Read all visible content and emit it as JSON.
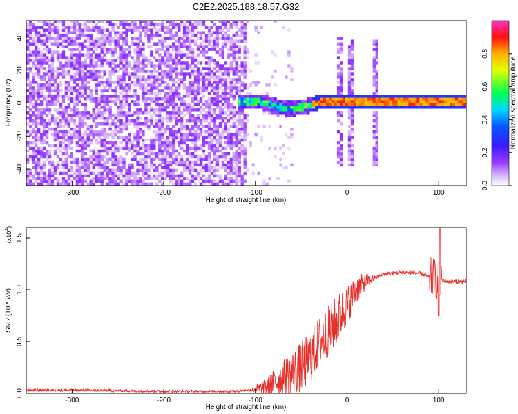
{
  "title": "C2E2.2025.188.18.57.G32",
  "colors": {
    "snr_line": "#e8302a",
    "axis": "#000000",
    "background": "#ffffff"
  },
  "chart_data": [
    {
      "type": "heatmap",
      "panel": "top",
      "xlabel": "Height of straight line (km)",
      "ylabel": "Frequency (Hz)",
      "xlim": [
        -350,
        130
      ],
      "ylim": [
        -50,
        50
      ],
      "xticks": [
        -300,
        -200,
        -100,
        0,
        100
      ],
      "yticks": [
        -40,
        -20,
        0,
        20,
        40
      ],
      "colorbar": {
        "label": "Normalized spectral amplitude",
        "range": [
          0,
          1
        ],
        "ticks": [
          "0.0",
          "0.2",
          "0.4",
          "0.6",
          "0.8"
        ],
        "colormap": "rainbow (white → violet → blue → cyan → green → yellow → red → magenta)"
      },
      "features": {
        "noise_region_x": [
          -350,
          -110
        ],
        "noise_amplitude": 0.1,
        "signal_line_x": [
          -120,
          130
        ],
        "signal_center_freq": 0,
        "signal_amplitude_at_top": 0.9,
        "vertical_bursts_x": [
          -10,
          2,
          30
        ]
      }
    },
    {
      "type": "line",
      "panel": "bottom",
      "xlabel": "Height of straight line (km)",
      "ylabel": "SNR (10 * v/v)",
      "y_multiplier": "(x10",
      "y_multiplier_exp": "4",
      "xlim": [
        -350,
        130
      ],
      "ylim": [
        0,
        1.6
      ],
      "xticks": [
        -300,
        -200,
        -100,
        0,
        100
      ],
      "yticks": [
        0.0,
        0.5,
        1.0,
        1.5
      ],
      "ytick_labels": [
        "0.0",
        "0.5",
        "1.0",
        "1.5"
      ],
      "series_trend": {
        "x": [
          -350,
          -300,
          -200,
          -120,
          -90,
          -70,
          -60,
          -50,
          -40,
          -30,
          -20,
          -10,
          0,
          10,
          20,
          40,
          60,
          80,
          90,
          100,
          110,
          130
        ],
        "y": [
          0.03,
          0.03,
          0.02,
          0.02,
          0.05,
          0.15,
          0.2,
          0.25,
          0.35,
          0.5,
          0.6,
          0.72,
          0.85,
          1.0,
          1.08,
          1.15,
          1.17,
          1.16,
          1.12,
          1.1,
          1.08,
          1.08
        ]
      },
      "noise_amplitude": 0.25
    }
  ]
}
